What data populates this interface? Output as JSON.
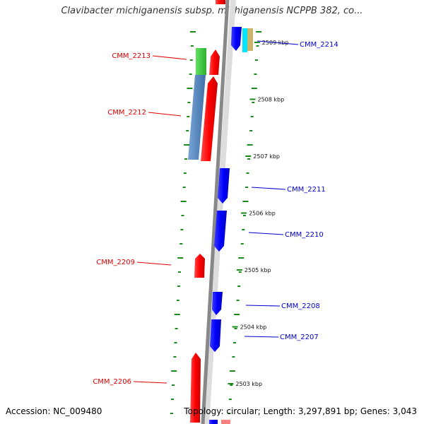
{
  "title": "Clavibacter michiganensis subsp. michiganensis NCPPB 382, co...",
  "footer": {
    "accession": "Accession: NC_009480",
    "info": "Topology: circular; Length: 3,297,891 bp; Genes: 3,043"
  },
  "colors": {
    "forward": "#ff0000",
    "reverse": "#0000ff",
    "ticks": "#1a8a1a",
    "backbone": "#888888"
  },
  "scale_ticks": [
    {
      "label": "2509 kbp",
      "kbp": 2509
    },
    {
      "label": "2508 kbp",
      "kbp": 2508
    },
    {
      "label": "2507 kbp",
      "kbp": 2507
    },
    {
      "label": "2506 kbp",
      "kbp": 2506
    },
    {
      "label": "2505 kbp",
      "kbp": 2505
    },
    {
      "label": "2504 kbp",
      "kbp": 2504
    },
    {
      "label": "2503 kbp",
      "kbp": 2503
    }
  ],
  "genes": [
    {
      "name": "CMM_2214",
      "strand": "reverse",
      "labeled": true
    },
    {
      "name": "CMM_2213",
      "strand": "forward",
      "labeled": true
    },
    {
      "name": "CMM_2212",
      "strand": "forward",
      "labeled": true
    },
    {
      "name": "CMM_2211",
      "strand": "reverse",
      "labeled": true
    },
    {
      "name": "CMM_2210",
      "strand": "reverse",
      "labeled": true
    },
    {
      "name": "CMM_2209",
      "strand": "forward",
      "labeled": true
    },
    {
      "name": "CMM_2208",
      "strand": "reverse",
      "labeled": true
    },
    {
      "name": "CMM_2207",
      "strand": "reverse",
      "labeled": true
    },
    {
      "name": "CMM_2206",
      "strand": "forward",
      "labeled": true
    }
  ]
}
